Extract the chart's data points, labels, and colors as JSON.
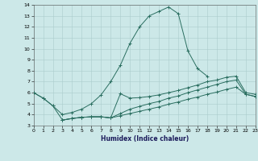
{
  "xlabel": "Humidex (Indice chaleur)",
  "bg_color": "#cce8e8",
  "grid_color": "#aacccc",
  "line_color": "#2a6e60",
  "xlim": [
    0,
    23
  ],
  "ylim": [
    3,
    14
  ],
  "xticks": [
    0,
    1,
    2,
    3,
    4,
    5,
    6,
    7,
    8,
    9,
    10,
    11,
    12,
    13,
    14,
    15,
    16,
    17,
    18,
    19,
    20,
    21,
    22,
    23
  ],
  "yticks": [
    3,
    4,
    5,
    6,
    7,
    8,
    9,
    10,
    11,
    12,
    13,
    14
  ],
  "curve1_x": [
    0,
    1,
    2,
    3,
    4,
    5,
    6,
    7,
    8,
    9,
    10,
    11,
    12,
    13,
    14,
    15,
    16,
    17,
    18
  ],
  "curve1_y": [
    6.0,
    5.5,
    4.8,
    4.0,
    4.2,
    4.5,
    5.0,
    5.8,
    7.0,
    8.5,
    10.5,
    12.0,
    13.0,
    13.4,
    13.8,
    13.2,
    9.8,
    8.2,
    7.5
  ],
  "curve2_x": [
    0,
    1,
    2,
    3,
    4,
    5,
    6,
    7,
    8,
    9,
    10,
    11,
    12,
    13,
    14,
    15,
    16,
    17,
    18,
    19,
    20,
    21,
    22,
    23
  ],
  "curve2_y": [
    6.0,
    5.5,
    4.8,
    3.5,
    3.65,
    3.75,
    3.8,
    3.8,
    3.7,
    5.9,
    5.5,
    5.55,
    5.65,
    5.8,
    6.0,
    6.2,
    6.45,
    6.7,
    7.0,
    7.15,
    7.4,
    7.5,
    6.0,
    5.85
  ],
  "curve3_x": [
    3,
    4,
    5,
    6,
    7,
    8,
    9,
    10,
    11,
    12,
    13,
    14,
    15,
    16,
    17,
    18,
    19,
    20,
    21,
    22,
    23
  ],
  "curve3_y": [
    3.5,
    3.65,
    3.75,
    3.8,
    3.8,
    3.7,
    4.1,
    4.5,
    4.75,
    5.0,
    5.2,
    5.5,
    5.7,
    6.0,
    6.25,
    6.5,
    6.75,
    7.0,
    7.15,
    5.85,
    5.65
  ],
  "curve4_x": [
    3,
    4,
    5,
    6,
    7,
    8,
    9,
    10,
    11,
    12,
    13,
    14,
    15,
    16,
    17,
    18,
    19,
    20,
    21,
    22,
    23
  ],
  "curve4_y": [
    3.5,
    3.65,
    3.75,
    3.8,
    3.8,
    3.7,
    3.9,
    4.1,
    4.3,
    4.5,
    4.7,
    4.95,
    5.15,
    5.4,
    5.6,
    5.85,
    6.05,
    6.3,
    6.5,
    5.85,
    5.65
  ]
}
